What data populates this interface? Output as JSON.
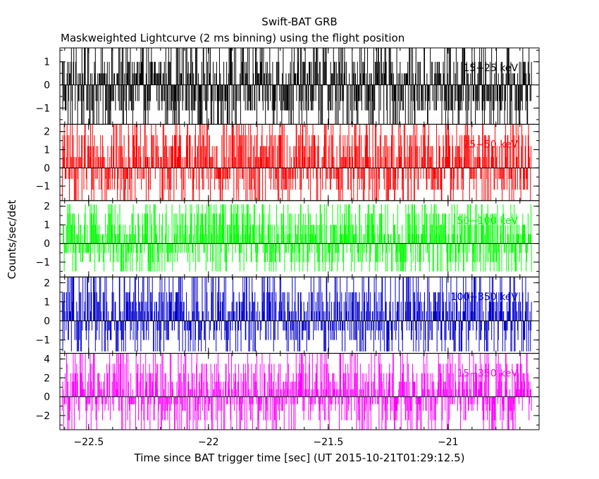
{
  "chart_data": {
    "type": "line",
    "title": "Swift-BAT GRB",
    "subtitle": "Maskweighted Lightcurve (2 ms binning) using the flight position",
    "xlabel": "Time since BAT trigger time [sec] (UT 2015-10-21T01:29:12.5)",
    "ylabel": "Counts/sec/det",
    "xlim": [
      -22.62,
      -20.62
    ],
    "xticks": [
      -22.5,
      -22,
      -21.5,
      -21
    ],
    "xtick_labels": [
      "−22.5",
      "−22",
      "−21.5",
      "−21"
    ],
    "bin_width_sec": 0.002,
    "grid": false,
    "panels": [
      {
        "name": "15−25 keV",
        "color": "#000000",
        "ylim": [
          -1.7,
          1.6
        ],
        "yticks": [
          -1,
          0,
          1
        ],
        "ytick_labels": [
          "−1",
          "0",
          "1"
        ],
        "x_range": [
          -22.61,
          -20.65
        ],
        "spike_levels": [
          -1.7,
          -1.1,
          -0.7,
          0.0,
          0.5,
          1.0,
          1.6
        ]
      },
      {
        "name": "25−50 keV",
        "color": "#ff0000",
        "ylim": [
          -1.8,
          2.4
        ],
        "yticks": [
          -1,
          0,
          1,
          2
        ],
        "ytick_labels": [
          "−1",
          "0",
          "1",
          "2"
        ],
        "x_range": [
          -22.61,
          -20.65
        ],
        "spike_levels": [
          -1.8,
          -1.2,
          -0.6,
          0.0,
          0.6,
          1.2,
          1.8,
          2.4
        ]
      },
      {
        "name": "50−100 keV",
        "color": "#00ff00",
        "ylim": [
          -1.8,
          2.3
        ],
        "yticks": [
          -1,
          0,
          1,
          2
        ],
        "ytick_labels": [
          "−1",
          "0",
          "1",
          "2"
        ],
        "x_range": [
          -22.61,
          -20.65
        ],
        "spike_levels": [
          -1.5,
          -1.0,
          -0.5,
          0.0,
          0.5,
          1.0,
          1.6,
          2.1
        ]
      },
      {
        "name": "100−350 keV",
        "color": "#0000cc",
        "ylim": [
          -1.7,
          2.3
        ],
        "yticks": [
          -1,
          0,
          1,
          2
        ],
        "ytick_labels": [
          "−1",
          "0",
          "1",
          "2"
        ],
        "x_range": [
          -22.61,
          -20.65
        ],
        "spike_levels": [
          -1.6,
          -1.0,
          -0.5,
          0.0,
          0.5,
          1.0,
          1.5,
          2.3
        ]
      },
      {
        "name": "15−350 keV",
        "color": "#ff00ff",
        "ylim": [
          -3.5,
          4.6
        ],
        "yticks": [
          -2,
          0,
          2,
          4
        ],
        "ytick_labels": [
          "−2",
          "0",
          "2",
          "4"
        ],
        "x_range": [
          -22.61,
          -20.65
        ],
        "spike_levels": [
          -3.5,
          -2.5,
          -1.5,
          -0.8,
          0.0,
          0.8,
          1.6,
          2.5,
          3.5,
          4.6
        ]
      }
    ]
  }
}
